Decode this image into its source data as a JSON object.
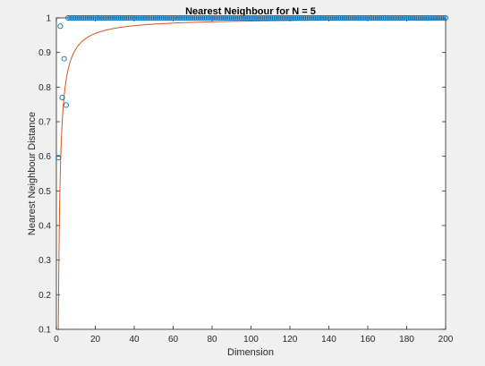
{
  "chart_data": {
    "type": "scatter",
    "title": "Nearest Neighbour for N = 5",
    "xlabel": "Dimension",
    "ylabel": "Nearest Neighbour Distance",
    "xlim": [
      0,
      200
    ],
    "ylim": [
      0.1,
      1
    ],
    "xticks": [
      "0",
      "20",
      "40",
      "60",
      "80",
      "100",
      "120",
      "140",
      "160",
      "180",
      "200"
    ],
    "yticks": [
      "0.1",
      "0.2",
      "0.3",
      "0.4",
      "0.5",
      "0.6",
      "0.7",
      "0.8",
      "0.9",
      "1"
    ],
    "grid": false,
    "legend": "none",
    "series": [
      {
        "marker": "circle",
        "color": "#0072BD",
        "x_first": [
          1,
          2,
          3,
          4,
          5
        ],
        "y_first": [
          0.596,
          0.976,
          0.77,
          0.882,
          0.748
        ],
        "rest": {
          "x_start": 6,
          "x_end": 200,
          "y": 1.0
        }
      },
      {
        "marker": "line",
        "color": "#D95319",
        "fit": {
          "form": "1 - a/d",
          "a": 0.9,
          "x_start": 1,
          "x_end": 200
        }
      }
    ]
  }
}
